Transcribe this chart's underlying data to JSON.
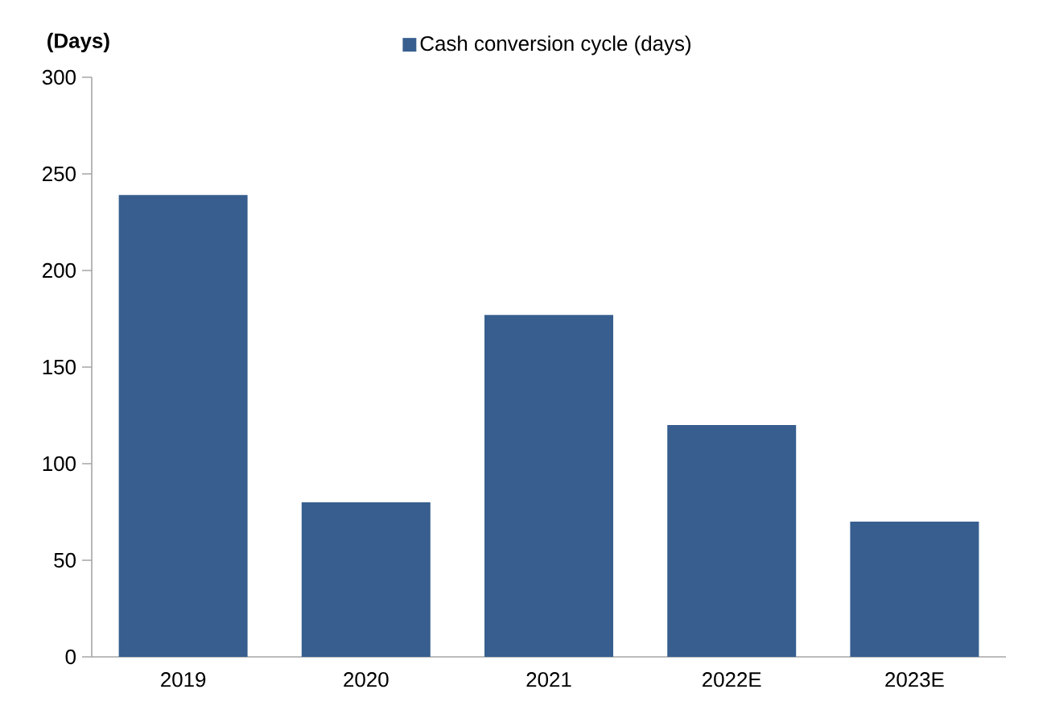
{
  "chart_data": {
    "type": "bar",
    "ylabel": "(Days)",
    "legend": "top",
    "categories": [
      "2019",
      "2020",
      "2021",
      "2022E",
      "2023E"
    ],
    "series": [
      {
        "name": "Cash conversion cycle (days)",
        "color": "#375e8f",
        "values": [
          239,
          80,
          177,
          120,
          70
        ]
      }
    ],
    "ylim": [
      0,
      300
    ],
    "yticks": [
      0,
      50,
      100,
      150,
      200,
      250,
      300
    ],
    "grid": false
  }
}
